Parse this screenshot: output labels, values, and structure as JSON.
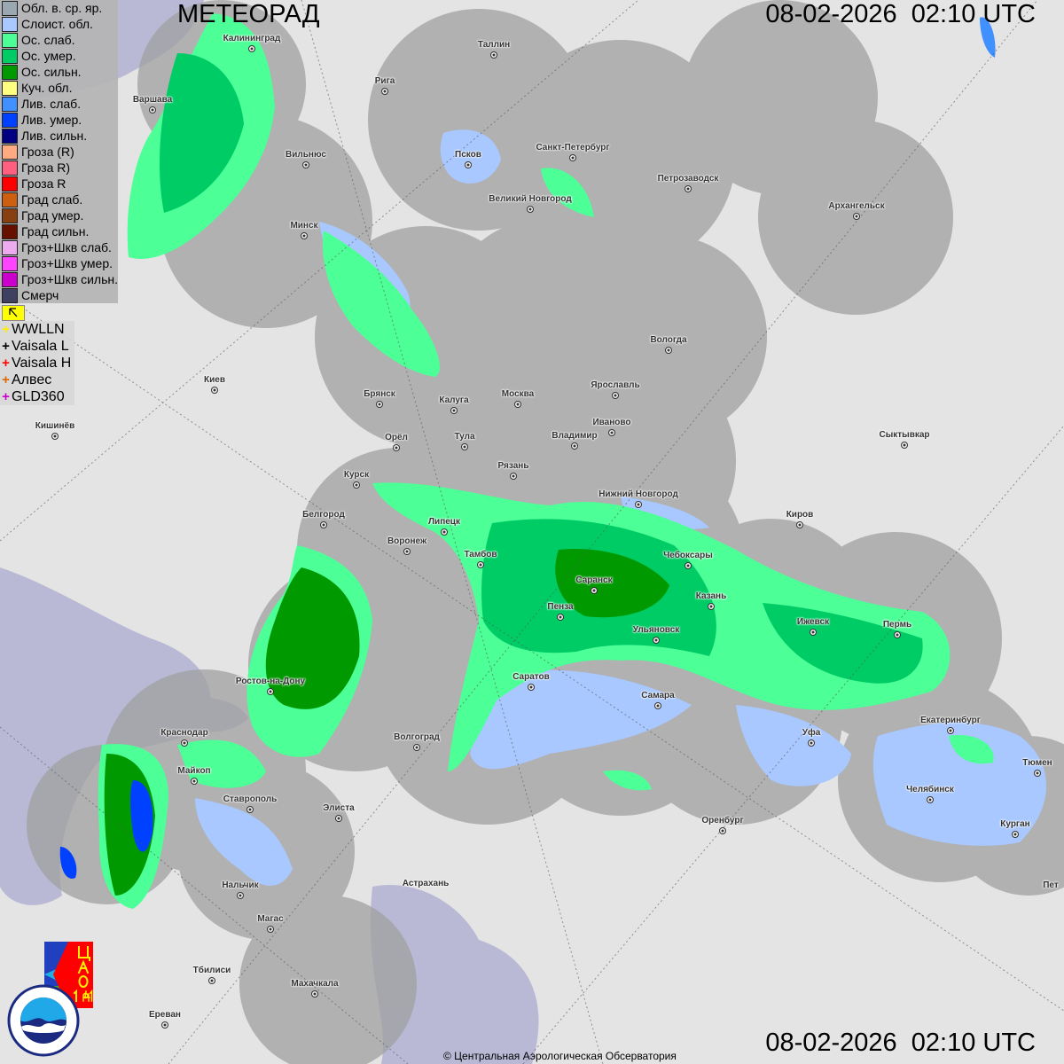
{
  "header": {
    "title": "МЕТЕОРАД",
    "timestamp_top": "08-02-2026  02:10 UTC",
    "timestamp_bottom": "08-02-2026  02:10 UTC"
  },
  "legend": {
    "items": [
      {
        "label": "Обл. в. ср. яр.",
        "color": "#9aa8b2"
      },
      {
        "label": "Слоист. обл.",
        "color": "#a8c8ff"
      },
      {
        "label": "Ос. слаб.",
        "color": "#4cff96"
      },
      {
        "label": "Ос. умер.",
        "color": "#00cc66"
      },
      {
        "label": "Ос. сильн.",
        "color": "#009900"
      },
      {
        "label": "Куч. обл.",
        "color": "#ffff80"
      },
      {
        "label": "Лив. слаб.",
        "color": "#4090ff"
      },
      {
        "label": "Лив. умер.",
        "color": "#0040ff"
      },
      {
        "label": "Лив. сильн.",
        "color": "#000080"
      },
      {
        "label": "Гроза (R)",
        "color": "#ffaa80"
      },
      {
        "label": "Гроза R)",
        "color": "#ff6080"
      },
      {
        "label": "Гроза R",
        "color": "#ff0000"
      },
      {
        "label": "Град слаб.",
        "color": "#cc6010"
      },
      {
        "label": "Град умер.",
        "color": "#884010"
      },
      {
        "label": "Град сильн.",
        "color": "#661100"
      },
      {
        "label": "Гроз+Шкв слаб.",
        "color": "#eeaaee"
      },
      {
        "label": "Гроз+Шкв умер.",
        "color": "#ff44ff"
      },
      {
        "label": "Гроз+Шкв сильн.",
        "color": "#cc00cc"
      },
      {
        "label": "Смерч",
        "color": "#404060"
      }
    ],
    "flag_icon": "arrow-flag-icon",
    "lightning": [
      {
        "label": "WWLLN",
        "color": "#ffee00"
      },
      {
        "label": "Vaisala L",
        "color": "#000000"
      },
      {
        "label": "Vaisala H",
        "color": "#ff0000"
      },
      {
        "label": "Алвес",
        "color": "#dd6600"
      },
      {
        "label": "GLD360",
        "color": "#cc00cc"
      }
    ]
  },
  "cities": [
    "Калининград",
    "Таллин",
    "Рига",
    "Варшава",
    "Вильнюс",
    "Псков",
    "Санкт-Петербург",
    "Петрозаводск",
    "Архангельск",
    "Великий Новгород",
    "Минск",
    "Вологда",
    "Киев",
    "Брянск",
    "Калуга",
    "Москва",
    "Ярославль",
    "Иваново",
    "Кишинёв",
    "Орёл",
    "Тула",
    "Владимир",
    "Сыктывкар",
    "Рязань",
    "Курск",
    "Нижний Новгород",
    "Белгород",
    "Киров",
    "Липецк",
    "Воронеж",
    "Тамбов",
    "Чебоксары",
    "Саранск",
    "Казань",
    "Пенза",
    "Ижевск",
    "Пермь",
    "Ульяновск",
    "Ростов-на-Дону",
    "Саратов",
    "Самара",
    "Екатеринбург",
    "Краснодар",
    "Волгоград",
    "Уфа",
    "Майкоп",
    "Челябинск",
    "Тюмен",
    "Ставрополь",
    "Элиста",
    "Оренбург",
    "Курган",
    "Астрахань",
    "Нальчик",
    "Пет",
    "Магас",
    "Тбилиси",
    "Махачкала",
    "Ереван"
  ],
  "logos": {
    "cao": "ЦАО 1941",
    "roshydromet": "РОСГИДРОМЕТ ROSHYDROMET"
  },
  "footer": {
    "copyright": "© Центральная Аэрологическая Обсерватория"
  },
  "colors": {
    "map_bg": "#e4e4e4",
    "radar_coverage": "#a0a0a0",
    "sea": "#b9b9d6"
  }
}
